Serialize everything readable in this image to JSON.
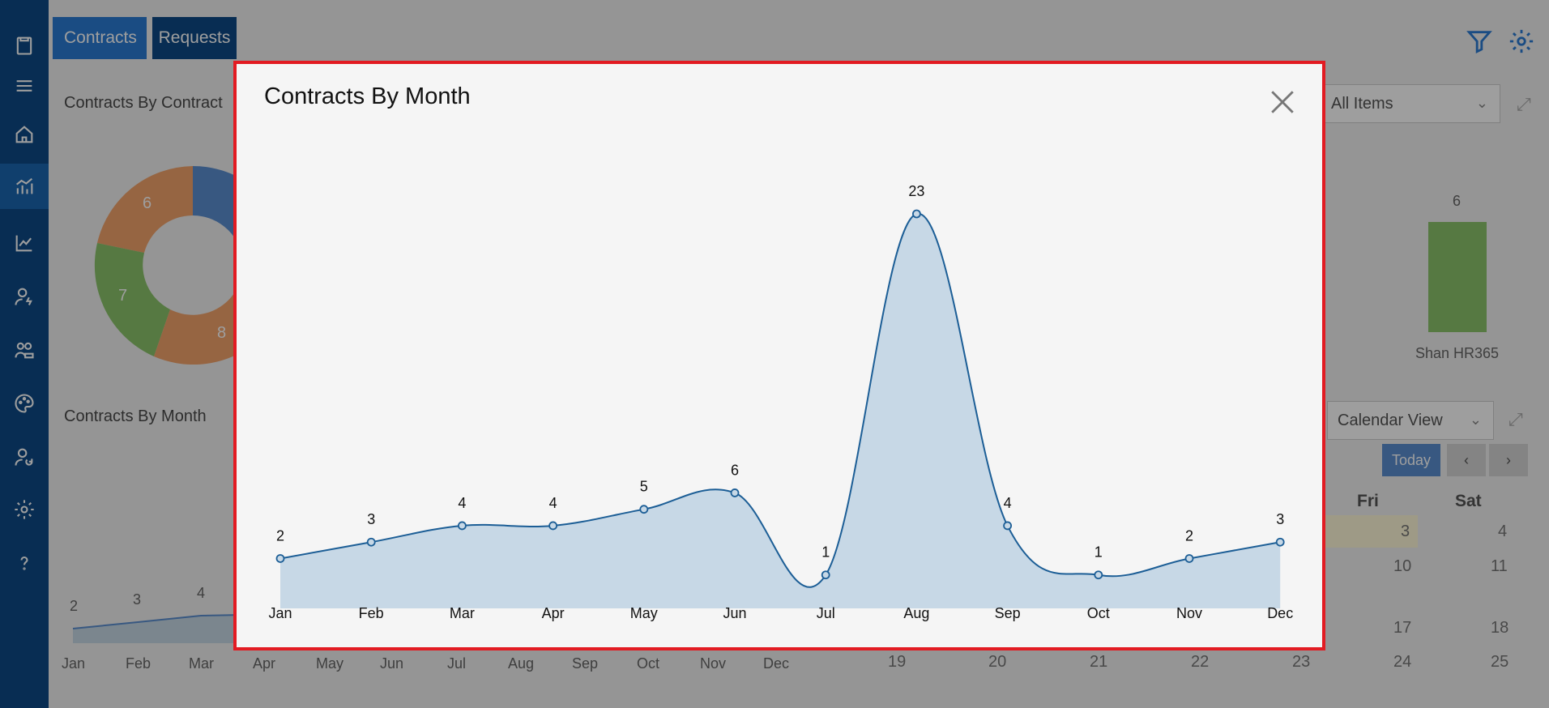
{
  "tabs": [
    {
      "label": "Contracts"
    },
    {
      "label": "Requests"
    }
  ],
  "background": {
    "panel1_title": "Contracts By Contract",
    "panel1_select": "All Items",
    "donut_labels": [
      "6",
      "7",
      "8"
    ],
    "bar_value": "6",
    "bar_category": "Shan HR365",
    "panel2_title": "Contracts By Month",
    "panel2_values": [
      "2",
      "3",
      "4"
    ],
    "panel2_months": [
      "Jan",
      "Feb",
      "Mar",
      "Apr",
      "May",
      "Jun",
      "Jul",
      "Aug",
      "Sep",
      "Oct",
      "Nov",
      "Dec"
    ],
    "calendar_select": "Calendar View",
    "today_label": "Today",
    "calendar_days": [
      "Fri",
      "Sat"
    ],
    "calendar_numbers": [
      "3",
      "4",
      "10",
      "11",
      "17",
      "18",
      "24",
      "25",
      "19",
      "20",
      "21",
      "22",
      "23"
    ]
  },
  "modal": {
    "title": "Contracts By Month"
  },
  "chart_data": {
    "type": "area",
    "title": "Contracts By Month",
    "categories": [
      "Jan",
      "Feb",
      "Mar",
      "Apr",
      "May",
      "Jun",
      "Jul",
      "Aug",
      "Sep",
      "Oct",
      "Nov",
      "Dec"
    ],
    "values": [
      2,
      3,
      4,
      4,
      5,
      6,
      1,
      23,
      4,
      1,
      2,
      3
    ],
    "ylim": [
      0,
      23
    ],
    "xlabel": "",
    "ylabel": "",
    "grid": false,
    "colors": {
      "line": "#1c5e96",
      "fill": "#c7d8e6"
    }
  }
}
